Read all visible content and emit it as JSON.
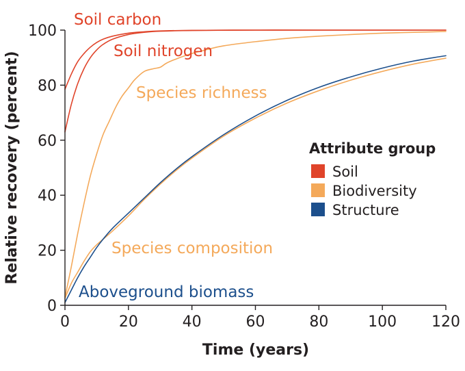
{
  "chart_data": {
    "type": "line",
    "xlabel": "Time (years)",
    "ylabel": "Relative recovery (percent)",
    "xlim": [
      0,
      120
    ],
    "ylim": [
      0,
      100
    ],
    "xticks": [
      "0",
      "20",
      "40",
      "60",
      "80",
      "100",
      "120"
    ],
    "yticks": [
      "0",
      "20",
      "40",
      "60",
      "80",
      "100"
    ],
    "grid": false,
    "legend": {
      "title": "Attribute group",
      "position": "right",
      "entries": [
        {
          "label": "Soil",
          "color": "#e0442a"
        },
        {
          "label": "Biodiversity",
          "color": "#f4a95a"
        },
        {
          "label": "Structure",
          "color": "#1c4f8c"
        }
      ]
    },
    "series": [
      {
        "name": "Soil carbon",
        "group": "Soil",
        "color": "#e0442a",
        "x": [
          0,
          2,
          4,
          6,
          8,
          10,
          12,
          15,
          20,
          25,
          30,
          40,
          60,
          80,
          120
        ],
        "y": [
          78.5,
          84,
          88.5,
          91.5,
          93.8,
          95.5,
          96.7,
          97.8,
          98.9,
          99.4,
          99.7,
          99.9,
          100,
          100,
          100
        ]
      },
      {
        "name": "Soil nitrogen",
        "group": "Soil",
        "color": "#e0442a",
        "x": [
          0,
          2,
          4,
          6,
          8,
          10,
          12,
          15,
          20,
          25,
          30,
          40,
          60,
          80,
          120
        ],
        "y": [
          63,
          73,
          80.5,
          86,
          90,
          92.8,
          94.8,
          96.7,
          98.4,
          99.2,
          99.6,
          99.9,
          100,
          100,
          100
        ]
      },
      {
        "name": "Species richness",
        "group": "Biodiversity",
        "color": "#f4a95a",
        "x": [
          0,
          2,
          4,
          6,
          8,
          10,
          12,
          14,
          16,
          18,
          20,
          22,
          25,
          28,
          30,
          32,
          35,
          40,
          45,
          50,
          60,
          70,
          80,
          90,
          100,
          110,
          120
        ],
        "y": [
          3,
          14,
          26,
          37,
          47,
          55,
          62,
          67,
          72,
          76,
          79,
          82,
          85,
          86,
          86.5,
          88,
          89.5,
          91.5,
          93,
          94.3,
          95.8,
          97,
          97.8,
          98.4,
          98.9,
          99.2,
          99.5
        ]
      },
      {
        "name": "Species composition",
        "group": "Biodiversity",
        "color": "#f4a95a",
        "x": [
          0,
          2,
          4,
          6,
          8,
          10,
          12,
          15,
          20,
          25,
          30,
          35,
          40,
          50,
          60,
          70,
          80,
          90,
          100,
          110,
          120
        ],
        "y": [
          2.5,
          8,
          12,
          16,
          19.5,
          22,
          24,
          27,
          32.5,
          38.5,
          44,
          49,
          53.5,
          61.5,
          68,
          73.5,
          78,
          81.8,
          85,
          87.7,
          89.8
        ]
      },
      {
        "name": "Aboveground biomass",
        "group": "Structure",
        "color": "#1c4f8c",
        "x": [
          0,
          2,
          4,
          6,
          8,
          10,
          12,
          15,
          20,
          25,
          30,
          35,
          40,
          50,
          60,
          70,
          80,
          90,
          100,
          110,
          120
        ],
        "y": [
          1,
          5.5,
          10,
          14,
          17.5,
          21,
          24,
          28,
          33.5,
          39,
          44.5,
          49.5,
          54,
          62,
          68.8,
          74.5,
          79.2,
          83,
          86.2,
          88.8,
          90.7
        ]
      }
    ]
  }
}
